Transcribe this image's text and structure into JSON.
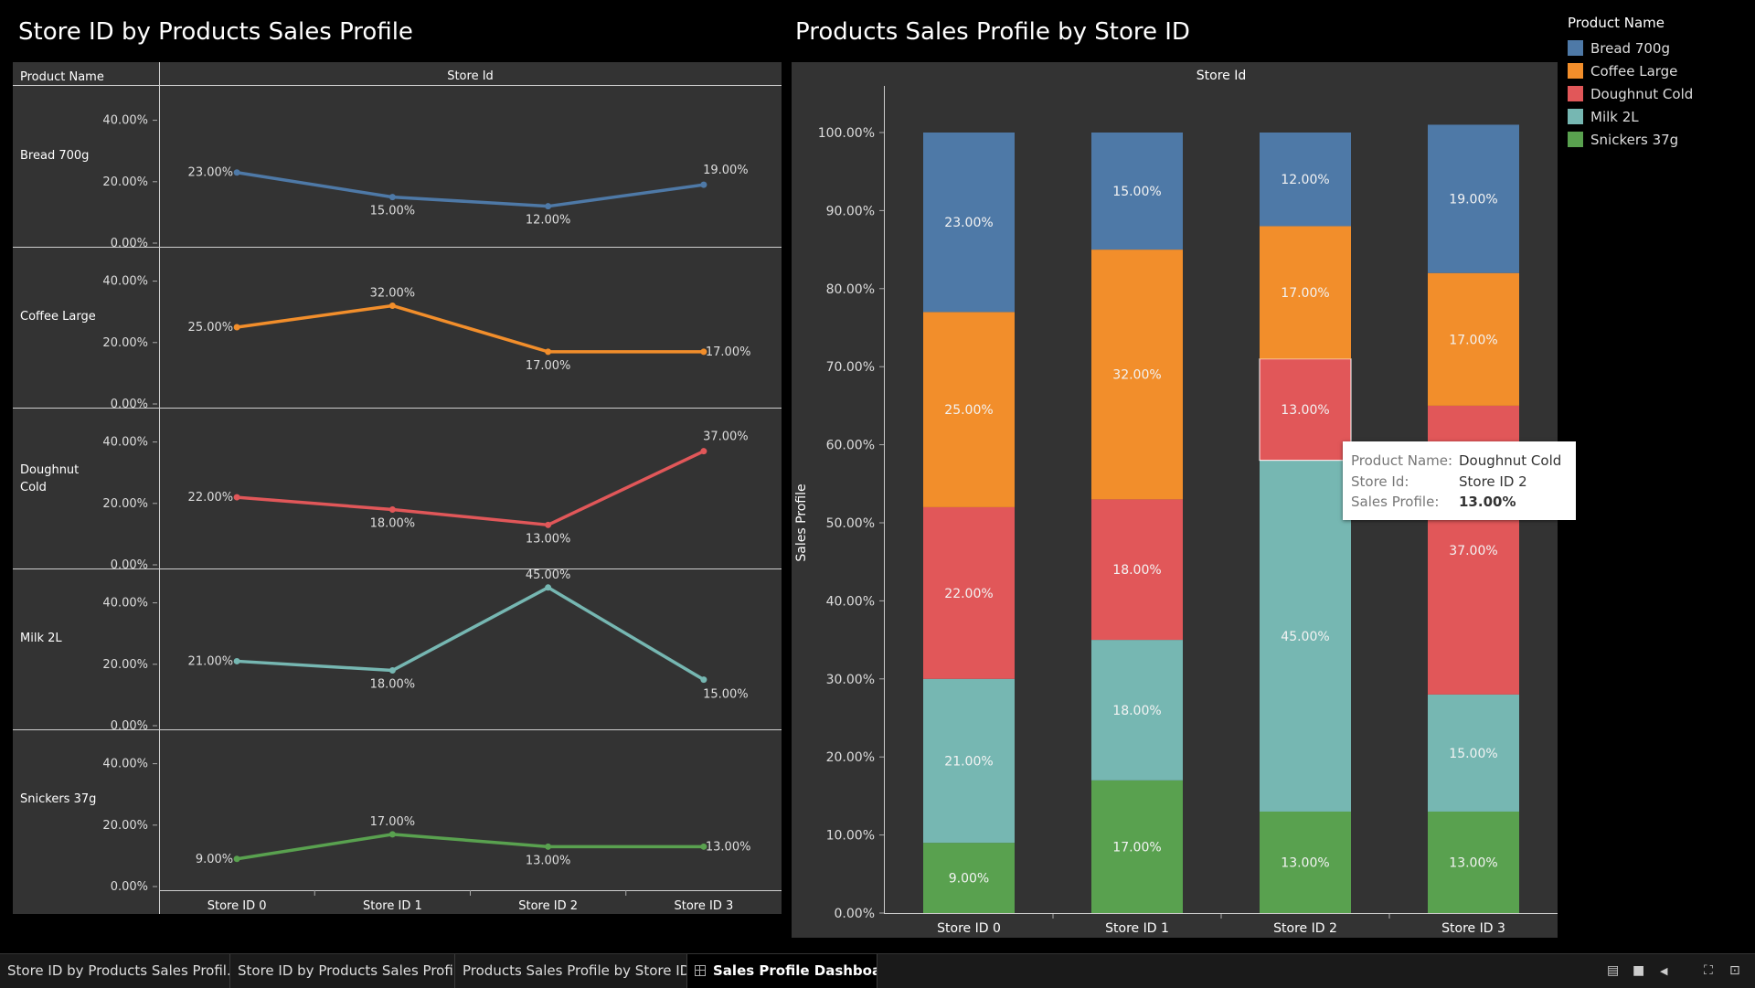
{
  "left_title": "Store ID by Products Sales Profile",
  "right_title": "Products Sales Profile by Store ID",
  "colors": {
    "Bread 700g": "#4e79a7",
    "Coffee Large": "#f28e2b",
    "Doughnut Cold": "#e15759",
    "Milk 2L": "#76b7b2",
    "Snickers 37g": "#59a14f"
  },
  "chart_data": [
    {
      "type": "line",
      "title": "Store ID by Products Sales Profile",
      "row_header": "Product Name",
      "column_header": "Store Id",
      "categories": [
        "Store ID 0",
        "Store ID 1",
        "Store ID 2",
        "Store ID 3"
      ],
      "y_ticks": [
        "40.00%",
        "20.00%",
        "0.00%"
      ],
      "ylim": [
        0,
        50
      ],
      "series": [
        {
          "name": "Bread 700g",
          "values": [
            23,
            15,
            12,
            19
          ],
          "labels": [
            "23.00%",
            "15.00%",
            "12.00%",
            "19.00%"
          ]
        },
        {
          "name": "Coffee Large",
          "values": [
            25,
            32,
            17,
            17
          ],
          "labels": [
            "25.00%",
            "32.00%",
            "17.00%",
            "17.00%"
          ]
        },
        {
          "name": "Doughnut Cold",
          "values": [
            22,
            18,
            13,
            37
          ],
          "labels": [
            "22.00%",
            "18.00%",
            "13.00%",
            "37.00%"
          ]
        },
        {
          "name": "Milk 2L",
          "values": [
            21,
            18,
            45,
            15
          ],
          "labels": [
            "21.00%",
            "18.00%",
            "45.00%",
            "15.00%"
          ]
        },
        {
          "name": "Snickers 37g",
          "values": [
            9,
            17,
            13,
            13
          ],
          "labels": [
            "9.00%",
            "17.00%",
            "13.00%",
            "13.00%"
          ]
        }
      ]
    },
    {
      "type": "bar",
      "stacked": true,
      "title": "Products Sales Profile by Store ID",
      "column_header": "Store Id",
      "ylabel": "Sales Profile",
      "categories": [
        "Store ID 0",
        "Store ID 1",
        "Store ID 2",
        "Store ID 3"
      ],
      "ylim": [
        0,
        100
      ],
      "y_ticks": [
        "0.00%",
        "10.00%",
        "20.00%",
        "30.00%",
        "40.00%",
        "50.00%",
        "60.00%",
        "70.00%",
        "80.00%",
        "90.00%",
        "100.00%"
      ],
      "series": [
        {
          "name": "Snickers 37g",
          "values": [
            9,
            17,
            13,
            13
          ],
          "labels": [
            "9.00%",
            "17.00%",
            "13.00%",
            "13.00%"
          ]
        },
        {
          "name": "Milk 2L",
          "values": [
            21,
            18,
            45,
            15
          ],
          "labels": [
            "21.00%",
            "18.00%",
            "45.00%",
            "15.00%"
          ]
        },
        {
          "name": "Doughnut Cold",
          "values": [
            22,
            18,
            13,
            37
          ],
          "labels": [
            "22.00%",
            "18.00%",
            "13.00%",
            "37.00%"
          ]
        },
        {
          "name": "Coffee Large",
          "values": [
            25,
            32,
            17,
            17
          ],
          "labels": [
            "25.00%",
            "32.00%",
            "17.00%",
            "17.00%"
          ]
        },
        {
          "name": "Bread 700g",
          "values": [
            23,
            15,
            12,
            19
          ],
          "labels": [
            "23.00%",
            "15.00%",
            "12.00%",
            "19.00%"
          ]
        }
      ]
    }
  ],
  "legend": {
    "title": "Product Name",
    "items": [
      "Bread 700g",
      "Coffee Large",
      "Doughnut Cold",
      "Milk 2L",
      "Snickers 37g"
    ]
  },
  "tooltip": {
    "k1": "Product Name:",
    "v1": "Doughnut Cold",
    "k2": "Store Id:",
    "v2": "Store ID 2",
    "k3": "Sales Profile:",
    "v3": "13.00%"
  },
  "tabs": [
    "Store ID by Products Sales Profil...",
    "Store ID by Products Sales Profil...",
    "Products Sales Profile by Store ID",
    "Sales Profile Dashboard"
  ]
}
